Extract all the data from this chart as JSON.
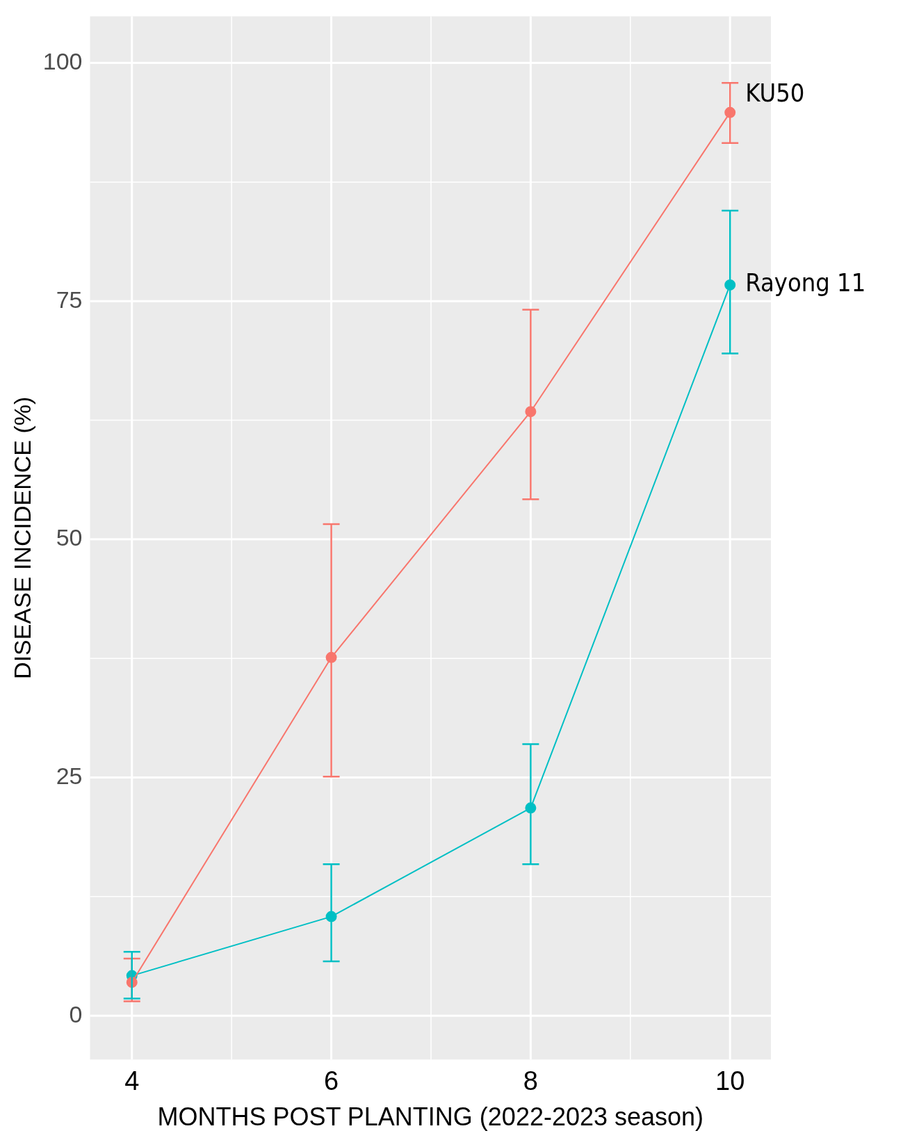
{
  "chart_data": {
    "type": "line",
    "xlabel": "MONTHS POST PLANTING (2022-2023 season)",
    "ylabel": "DISEASE INCIDENCE (%)",
    "x": [
      4,
      6,
      8,
      10
    ],
    "series": [
      {
        "name": "KU50",
        "color": "#f8766d",
        "values": [
          3.5,
          37.6,
          63.4,
          94.8
        ],
        "errors": [
          [
            1.5,
            6
          ],
          [
            25.1,
            51.6
          ],
          [
            54.2,
            74.1
          ],
          [
            91.6,
            97.9
          ]
        ]
      },
      {
        "name": "Rayong 11",
        "color": "#00bfc4",
        "values": [
          4.2,
          10.4,
          21.8,
          76.7
        ],
        "errors": [
          [
            1.8,
            6.7
          ],
          [
            5.7,
            15.9
          ],
          [
            15.9,
            28.5
          ],
          [
            69.5,
            84.5
          ]
        ]
      }
    ],
    "xlim": [
      3.58,
      10.41
    ],
    "ylim": [
      -4.6,
      104.9
    ],
    "xticks": [
      4,
      6,
      8,
      10
    ],
    "yticks": [
      0,
      25,
      50,
      75,
      100
    ],
    "grid": true,
    "legend": false,
    "marker": "circle",
    "line_style": "solid"
  }
}
